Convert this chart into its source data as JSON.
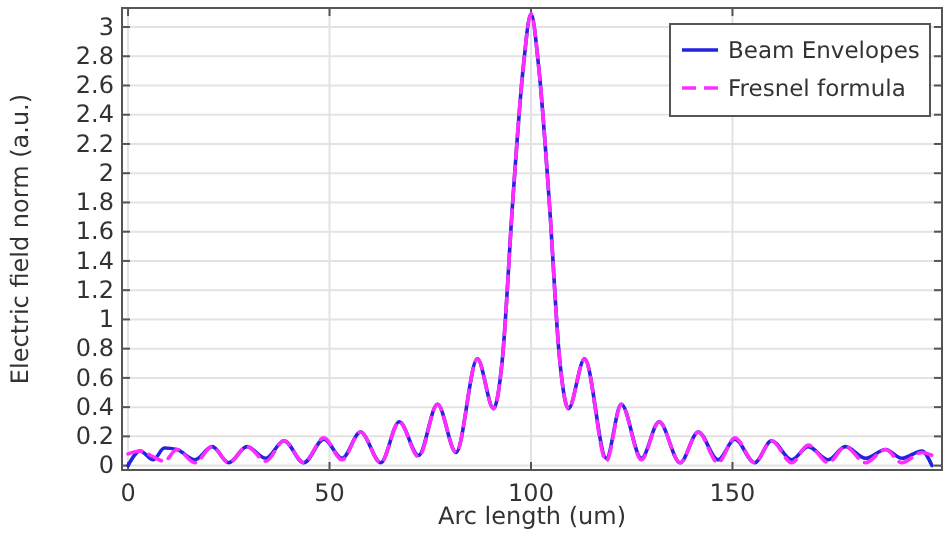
{
  "chart_data": {
    "type": "line",
    "xlabel": "Arc length (um)",
    "ylabel": "Electric field norm (a.u.)",
    "x": [
      0,
      3,
      6.3,
      9,
      12.1,
      16.6,
      20.9,
      25,
      29.5,
      34.2,
      38.7,
      43.6,
      48.6,
      53.1,
      57.7,
      62.7,
      67.3,
      72.1,
      76.8,
      81.4,
      86.7,
      90.7,
      92.9,
      95.5,
      98.1,
      100,
      101.9,
      104.5,
      107.1,
      109.3,
      113.3,
      118.7,
      122.4,
      127.4,
      131.8,
      137,
      141.5,
      146.4,
      150.6,
      155.5,
      159.7,
      164.7,
      168.8,
      173.8,
      178,
      183,
      188,
      192,
      197,
      199.5
    ],
    "series": [
      {
        "name": "Beam Envelopes",
        "color": "#2323e0",
        "line_style": "solid",
        "values": [
          0,
          0.1,
          0.04,
          0.12,
          0.11,
          0.04,
          0.13,
          0.02,
          0.13,
          0.05,
          0.17,
          0.02,
          0.18,
          0.05,
          0.23,
          0.02,
          0.3,
          0.07,
          0.42,
          0.09,
          0.73,
          0.39,
          0.73,
          1.82,
          2.73,
          3.09,
          2.73,
          1.82,
          0.73,
          0.39,
          0.73,
          0.05,
          0.42,
          0.05,
          0.3,
          0.02,
          0.23,
          0.04,
          0.18,
          0.02,
          0.17,
          0.04,
          0.13,
          0.04,
          0.13,
          0.05,
          0.11,
          0.05,
          0.1,
          0
        ]
      },
      {
        "name": "Fresnel formula",
        "color": "#ff2cff",
        "line_style": "dashed",
        "values": [
          0.08,
          0.1,
          0.06,
          0.03,
          0.11,
          0.02,
          0.13,
          0.02,
          0.13,
          0.03,
          0.17,
          0.02,
          0.19,
          0.04,
          0.23,
          0.02,
          0.3,
          0.06,
          0.42,
          0.09,
          0.73,
          0.39,
          0.73,
          1.82,
          2.73,
          3.09,
          2.73,
          1.82,
          0.73,
          0.39,
          0.73,
          0.03,
          0.42,
          0.04,
          0.3,
          0.02,
          0.23,
          0.02,
          0.19,
          0.02,
          0.17,
          0.02,
          0.14,
          0.02,
          0.13,
          0.02,
          0.11,
          0.02,
          0.09,
          0.07
        ]
      }
    ],
    "xlim": [
      -1.5,
      202
    ],
    "ylim": [
      -0.03,
      3.13
    ],
    "xticks": [
      0,
      50,
      100,
      150
    ],
    "yticks": [
      0,
      0.2,
      0.4,
      0.6,
      0.8,
      1,
      1.2,
      1.4,
      1.6,
      1.8,
      2,
      2.2,
      2.4,
      2.6,
      2.8,
      3
    ],
    "grid": true,
    "legend": "top right"
  }
}
